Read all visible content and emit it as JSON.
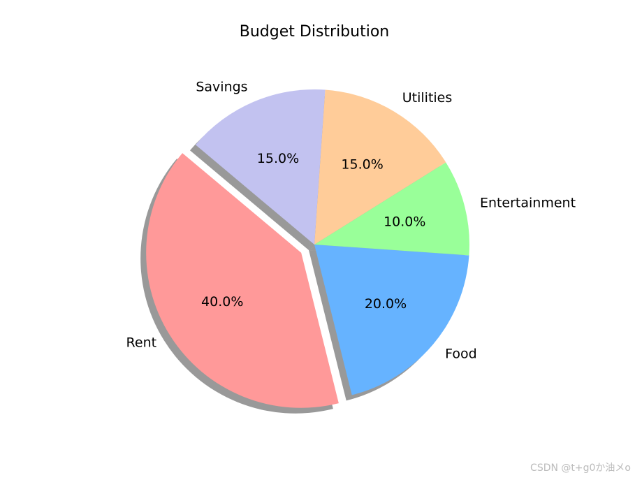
{
  "chart_data": {
    "type": "pie",
    "title": "Budget Distribution",
    "categories": [
      "Rent",
      "Food",
      "Entertainment",
      "Utilities",
      "Savings"
    ],
    "values": [
      40,
      20,
      10,
      15,
      15
    ],
    "value_labels": [
      "40.0%",
      "20.0%",
      "10.0%",
      "15.0%",
      "15.0%"
    ],
    "colors": [
      "#ff9999",
      "#66b3ff",
      "#99ff99",
      "#ffcc99",
      "#c2c2f0"
    ],
    "explode": [
      0.1,
      0,
      0,
      0,
      0
    ],
    "startangle": 140,
    "shadow": true
  },
  "watermark": "CSDN @t+g0か油メo"
}
